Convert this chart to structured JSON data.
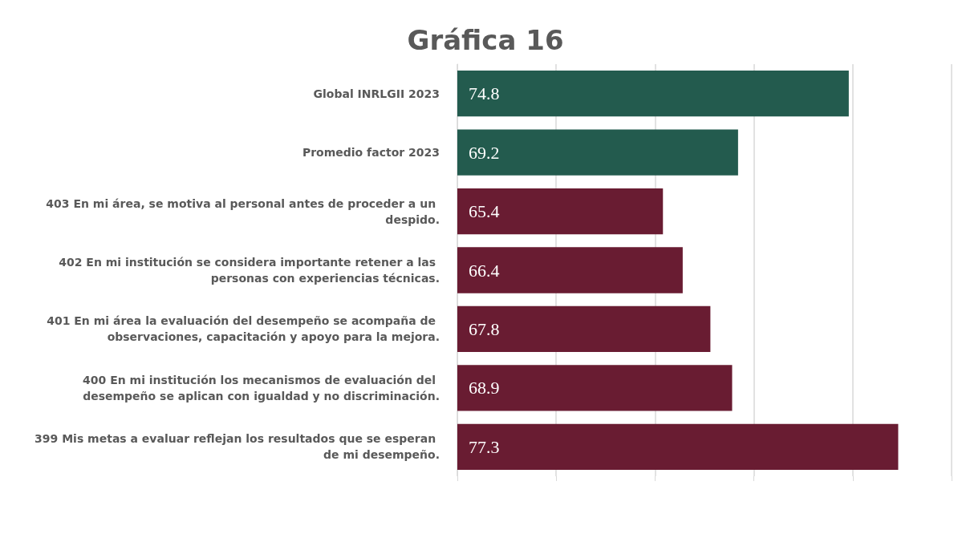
{
  "chart_data": {
    "type": "bar",
    "orientation": "horizontal",
    "title": "Gráfica 16",
    "categories": [
      "Global INRLGII 2023",
      "Promedio factor 2023",
      "403 En mi área, se motiva al personal antes de proceder a un despido.",
      "402 En mi institución se considera importante retener a las personas con experiencias técnicas.",
      "401 En mi área la evaluación del desempeño se acompaña de observaciones, capacitación y apoyo para la mejora.",
      "400 En mi institución los mecanismos de evaluación del desempeño se aplican con igualdad y no discriminación.",
      "399 Mis metas a evaluar reflejan los resultados que se esperan de mi desempeño."
    ],
    "values": [
      74.8,
      69.2,
      65.4,
      66.4,
      67.8,
      68.9,
      77.3
    ],
    "colors": [
      "#235b4e",
      "#235b4e",
      "#691c32",
      "#691c32",
      "#691c32",
      "#691c32",
      "#691c32"
    ],
    "xlim": [
      55,
      80
    ],
    "xticks": [
      {
        "value": 55,
        "label": null
      },
      {
        "value": 60,
        "label": null
      },
      {
        "value": 65,
        "label": null
      },
      {
        "value": 70,
        "label": null
      },
      {
        "value": 75,
        "label": null
      },
      {
        "value": 80,
        "label": null
      }
    ],
    "tick_labels": "y",
    "grid": "x",
    "data_labels": true
  }
}
